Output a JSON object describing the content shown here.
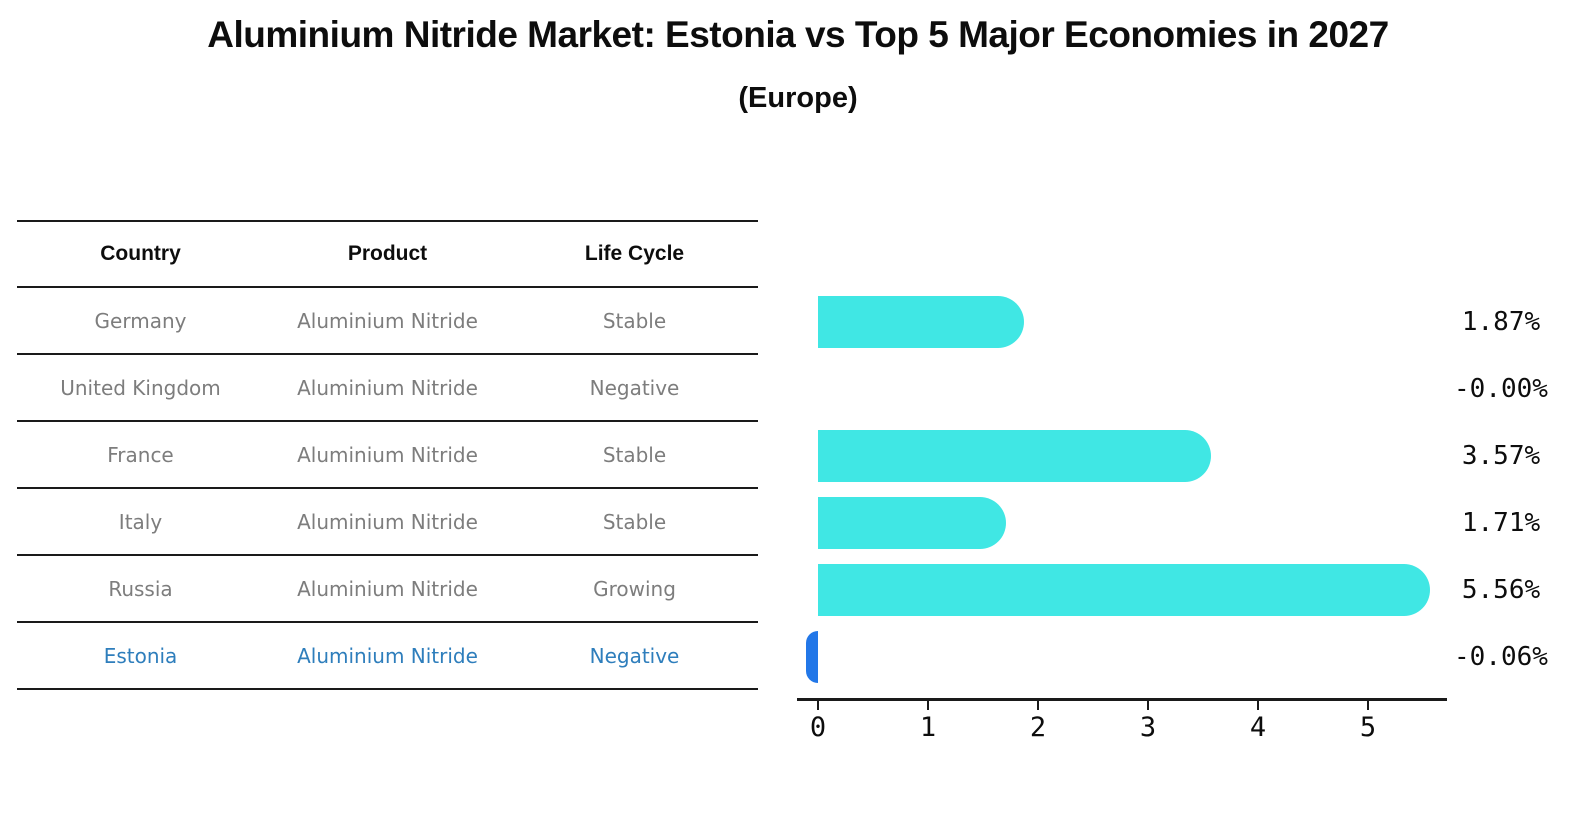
{
  "title": "Aluminium Nitride Market: Estonia vs Top 5 Major Economies in 2027",
  "subtitle": "(Europe)",
  "table": {
    "headers": [
      "Country",
      "Product",
      "Life Cycle"
    ],
    "rows": [
      {
        "country": "Germany",
        "product": "Aluminium Nitride",
        "life_cycle": "Stable"
      },
      {
        "country": "United Kingdom",
        "product": "Aluminium Nitride",
        "life_cycle": "Negative"
      },
      {
        "country": "France",
        "product": "Aluminium Nitride",
        "life_cycle": "Stable"
      },
      {
        "country": "Italy",
        "product": "Aluminium Nitride",
        "life_cycle": "Stable"
      },
      {
        "country": "Russia",
        "product": "Aluminium Nitride",
        "life_cycle": "Growing"
      },
      {
        "country": "Estonia",
        "product": "Aluminium Nitride",
        "life_cycle": "Negative"
      }
    ],
    "highlight_row_index": 5
  },
  "chart_data": {
    "type": "bar",
    "orientation": "horizontal",
    "title": "Aluminium Nitride Market: Estonia vs Top 5 Major Economies in 2027",
    "subtitle": "(Europe)",
    "categories": [
      "Germany",
      "United Kingdom",
      "France",
      "Italy",
      "Russia",
      "Estonia"
    ],
    "values": [
      1.87,
      -0.0,
      3.57,
      1.71,
      5.56,
      -0.06
    ],
    "value_labels": [
      "1.87%",
      "-0.00%",
      "3.57%",
      "1.71%",
      "5.56%",
      "-0.06%"
    ],
    "xlabel": "",
    "ylabel": "",
    "xlim": [
      -0.3,
      5.85
    ],
    "xticks": [
      "0",
      "1",
      "2",
      "3",
      "4",
      "5"
    ],
    "grid": false,
    "legend": false,
    "highlight_index": 5
  },
  "colors": {
    "bar": "#40E7E4",
    "highlight_bar": "#2277E8",
    "highlight_text": "#2e7ebc",
    "table_text": "#7d7d7d",
    "heading_text": "#0d0d0d",
    "line": "#1a1a1a"
  }
}
